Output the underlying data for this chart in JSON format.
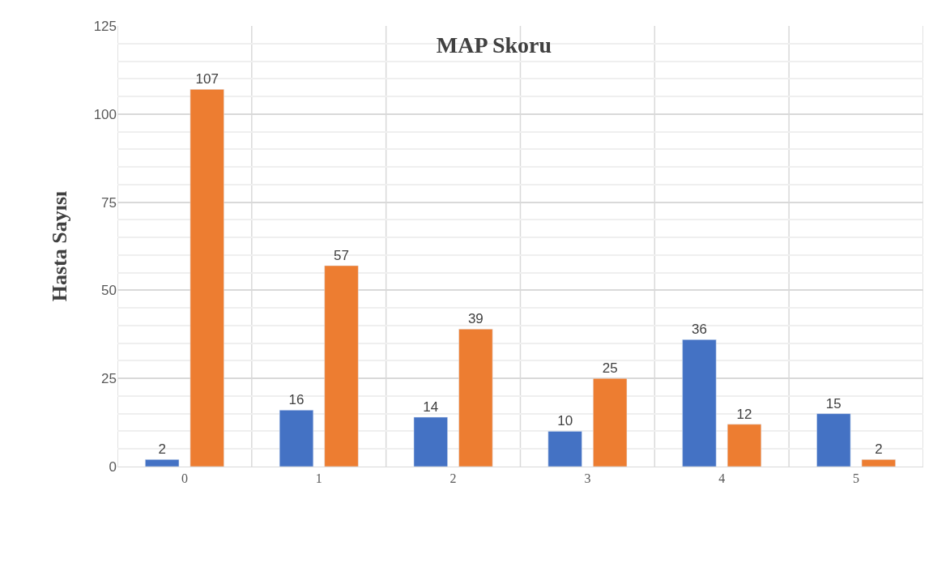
{
  "chart_data": {
    "type": "bar",
    "title": "MAP Skoru",
    "ylabel": "Hasta Sayısı",
    "categories": [
      "0",
      "1",
      "2",
      "3",
      "4",
      "5"
    ],
    "series": [
      {
        "color": "#4472c4",
        "values": [
          2,
          16,
          14,
          10,
          36,
          15
        ]
      },
      {
        "color": "#ed7d31",
        "values": [
          107,
          57,
          39,
          25,
          12,
          2
        ]
      }
    ],
    "ylim": [
      0,
      125
    ],
    "yticks": [
      0,
      25,
      50,
      75,
      100,
      125
    ],
    "grid": true,
    "data_labels": true
  }
}
